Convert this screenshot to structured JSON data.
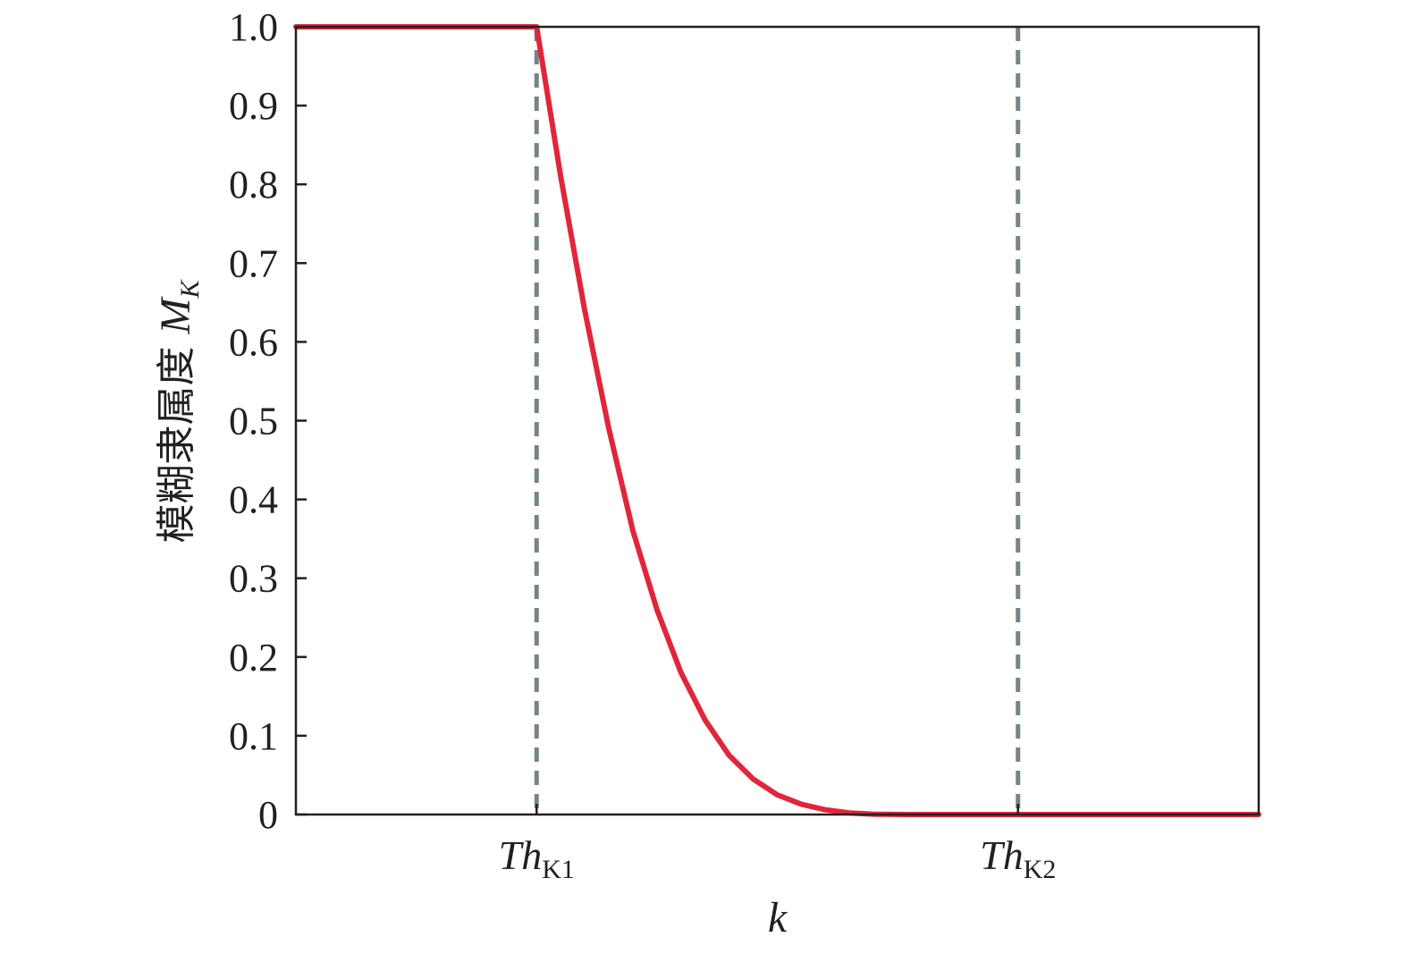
{
  "chart_data": {
    "type": "line",
    "title": "",
    "xlabel": "k",
    "ylabel": {
      "text": "模糊隶属度",
      "symbol": "M",
      "subscript": "K"
    },
    "ylim": [
      0,
      1.0
    ],
    "xlim": [
      0,
      1.0
    ],
    "y_ticks": [
      {
        "value": 0.0,
        "label": "0"
      },
      {
        "value": 0.1,
        "label": "0.1"
      },
      {
        "value": 0.2,
        "label": "0.2"
      },
      {
        "value": 0.3,
        "label": "0.3"
      },
      {
        "value": 0.4,
        "label": "0.4"
      },
      {
        "value": 0.5,
        "label": "0.5"
      },
      {
        "value": 0.6,
        "label": "0.6"
      },
      {
        "value": 0.7,
        "label": "0.7"
      },
      {
        "value": 0.8,
        "label": "0.8"
      },
      {
        "value": 0.9,
        "label": "0.9"
      },
      {
        "value": 1.0,
        "label": "1.0"
      }
    ],
    "x_ticks": [
      {
        "value": 0.25,
        "main": "Th",
        "sub": "K1"
      },
      {
        "value": 0.75,
        "main": "Th",
        "sub": "K2"
      }
    ],
    "reference_lines": [
      {
        "x": 0.25,
        "style": "dashed"
      },
      {
        "x": 0.75,
        "style": "dashed"
      }
    ],
    "grid": false,
    "legend": "none",
    "colors": {
      "curve": "#e0263a",
      "reference": "#75838a",
      "axis": "#231f20"
    },
    "series": [
      {
        "x": [
          0,
          0.25,
          0.275,
          0.3,
          0.325,
          0.35,
          0.375,
          0.4,
          0.425,
          0.45,
          0.475,
          0.5,
          0.525,
          0.55,
          0.575,
          0.6,
          0.625,
          0.65,
          0.675,
          0.7,
          0.725,
          0.75,
          1.0
        ],
        "y": [
          1.0,
          1.0,
          0.81,
          0.64,
          0.49,
          0.36,
          0.26,
          0.18,
          0.12,
          0.075,
          0.045,
          0.025,
          0.013,
          0.006,
          0.002,
          0.0005,
          0.0001,
          0,
          0,
          0,
          0,
          0,
          0
        ]
      }
    ]
  }
}
